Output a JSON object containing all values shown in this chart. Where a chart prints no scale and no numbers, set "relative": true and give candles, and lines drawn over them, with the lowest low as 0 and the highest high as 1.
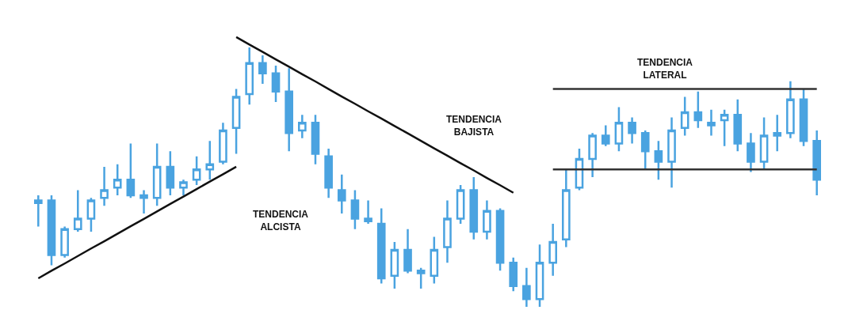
{
  "chart_data": {
    "type": "candlestick",
    "relative": true,
    "tick_labels": false,
    "color": "#4aa3e0",
    "categories": [
      null,
      null,
      null,
      null,
      null,
      null,
      null,
      null,
      null,
      null,
      null,
      null,
      null,
      null,
      null,
      null,
      null,
      null,
      null,
      null,
      null,
      null,
      null,
      null,
      null,
      null,
      null,
      null,
      null,
      null,
      null,
      null,
      null,
      null,
      null,
      null,
      null,
      null,
      null,
      null,
      null,
      null,
      null,
      null,
      null,
      null,
      null,
      null,
      null,
      null,
      null,
      null,
      null,
      null,
      null,
      null,
      null,
      null,
      null,
      null
    ],
    "ohlc": [
      [
        0.4,
        0.43,
        0.31,
        0.41
      ],
      [
        0.41,
        0.43,
        0.16,
        0.2
      ],
      [
        0.2,
        0.31,
        0.19,
        0.3
      ],
      [
        0.3,
        0.45,
        0.29,
        0.34
      ],
      [
        0.34,
        0.42,
        0.29,
        0.41
      ],
      [
        0.42,
        0.54,
        0.39,
        0.45
      ],
      [
        0.46,
        0.55,
        0.43,
        0.49
      ],
      [
        0.49,
        0.63,
        0.42,
        0.43
      ],
      [
        0.43,
        0.45,
        0.36,
        0.42
      ],
      [
        0.42,
        0.63,
        0.39,
        0.54
      ],
      [
        0.54,
        0.6,
        0.43,
        0.46
      ],
      [
        0.46,
        0.49,
        0.43,
        0.48
      ],
      [
        0.49,
        0.58,
        0.47,
        0.53
      ],
      [
        0.53,
        0.64,
        0.49,
        0.55
      ],
      [
        0.56,
        0.71,
        0.55,
        0.68
      ],
      [
        0.69,
        0.84,
        0.59,
        0.81
      ],
      [
        0.82,
        1.0,
        0.78,
        0.94
      ],
      [
        0.94,
        0.97,
        0.86,
        0.9
      ],
      [
        0.9,
        0.93,
        0.79,
        0.83
      ],
      [
        0.83,
        0.92,
        0.6,
        0.67
      ],
      [
        0.68,
        0.74,
        0.65,
        0.71
      ],
      [
        0.71,
        0.74,
        0.55,
        0.59
      ],
      [
        0.58,
        0.61,
        0.42,
        0.46
      ],
      [
        0.45,
        0.51,
        0.36,
        0.41
      ],
      [
        0.41,
        0.45,
        0.3,
        0.34
      ],
      [
        0.34,
        0.41,
        0.32,
        0.33
      ],
      [
        0.32,
        0.38,
        0.09,
        0.11
      ],
      [
        0.12,
        0.25,
        0.07,
        0.22
      ],
      [
        0.22,
        0.3,
        0.13,
        0.14
      ],
      [
        0.14,
        0.15,
        0.07,
        0.13
      ],
      [
        0.12,
        0.27,
        0.09,
        0.22
      ],
      [
        0.23,
        0.41,
        0.17,
        0.34
      ],
      [
        0.34,
        0.47,
        0.32,
        0.45
      ],
      [
        0.45,
        0.5,
        0.26,
        0.29
      ],
      [
        0.29,
        0.41,
        0.26,
        0.37
      ],
      [
        0.37,
        0.38,
        0.14,
        0.17
      ],
      [
        0.17,
        0.19,
        0.06,
        0.08
      ],
      [
        0.08,
        0.15,
        0.0,
        0.03
      ],
      [
        0.03,
        0.24,
        0.0,
        0.17
      ],
      [
        0.17,
        0.32,
        0.12,
        0.25
      ],
      [
        0.26,
        0.53,
        0.23,
        0.45
      ],
      [
        0.46,
        0.61,
        0.45,
        0.57
      ],
      [
        0.57,
        0.67,
        0.5,
        0.66
      ],
      [
        0.66,
        0.7,
        0.62,
        0.63
      ],
      [
        0.63,
        0.77,
        0.6,
        0.71
      ],
      [
        0.71,
        0.73,
        0.63,
        0.67
      ],
      [
        0.67,
        0.68,
        0.53,
        0.6
      ],
      [
        0.6,
        0.64,
        0.49,
        0.56
      ],
      [
        0.56,
        0.73,
        0.46,
        0.68
      ],
      [
        0.69,
        0.81,
        0.66,
        0.75
      ],
      [
        0.75,
        0.83,
        0.69,
        0.72
      ],
      [
        0.71,
        0.76,
        0.66,
        0.7
      ],
      [
        0.72,
        0.76,
        0.62,
        0.74
      ],
      [
        0.74,
        0.8,
        0.6,
        0.63
      ],
      [
        0.63,
        0.67,
        0.52,
        0.56
      ],
      [
        0.56,
        0.73,
        0.53,
        0.66
      ],
      [
        0.66,
        0.74,
        0.6,
        0.67
      ],
      [
        0.67,
        0.87,
        0.65,
        0.8
      ],
      [
        0.8,
        0.84,
        0.62,
        0.64
      ],
      [
        0.64,
        0.68,
        0.43,
        0.49
      ]
    ],
    "series": [
      {
        "type": "line",
        "color": "#111111",
        "values": [
          0.11,
          0.139,
          0.167,
          0.196,
          0.225,
          0.253,
          0.282,
          0.311,
          0.339,
          0.368,
          0.397,
          0.425,
          0.454,
          0.483,
          0.511,
          0.54,
          null,
          null,
          null,
          null,
          null,
          null,
          null,
          null,
          null,
          null,
          null,
          null,
          null,
          null,
          null,
          null,
          null,
          null,
          null,
          null,
          null,
          null,
          null,
          null,
          null,
          null,
          null,
          null,
          null,
          null,
          null,
          null,
          null,
          null,
          null,
          null,
          null,
          null,
          null,
          null,
          null,
          null,
          null,
          null
        ]
      },
      {
        "type": "line",
        "color": "#111111",
        "values": [
          null,
          null,
          null,
          null,
          null,
          null,
          null,
          null,
          null,
          null,
          null,
          null,
          null,
          null,
          null,
          1.04,
          1.011,
          0.983,
          0.954,
          0.926,
          0.897,
          0.869,
          0.84,
          0.811,
          0.783,
          0.754,
          0.726,
          0.697,
          0.669,
          0.64,
          0.611,
          0.583,
          0.554,
          0.526,
          0.497,
          0.469,
          0.44,
          null,
          null,
          null,
          null,
          null,
          null,
          null,
          null,
          null,
          null,
          null,
          null,
          null,
          null,
          null,
          null,
          null,
          null,
          null,
          null,
          null,
          null,
          null
        ]
      },
      {
        "type": "line",
        "color": "#333333",
        "values": [
          null,
          null,
          null,
          null,
          null,
          null,
          null,
          null,
          null,
          null,
          null,
          null,
          null,
          null,
          null,
          null,
          null,
          null,
          null,
          null,
          null,
          null,
          null,
          null,
          null,
          null,
          null,
          null,
          null,
          null,
          null,
          null,
          null,
          null,
          null,
          null,
          null,
          null,
          null,
          0.84,
          0.84,
          0.84,
          0.84,
          0.84,
          0.84,
          0.84,
          0.84,
          0.84,
          0.84,
          0.84,
          0.84,
          0.84,
          0.84,
          0.84,
          0.84,
          0.84,
          0.84,
          0.84,
          0.84,
          0.84
        ]
      },
      {
        "type": "line",
        "color": "#333333",
        "values": [
          null,
          null,
          null,
          null,
          null,
          null,
          null,
          null,
          null,
          null,
          null,
          null,
          null,
          null,
          null,
          null,
          null,
          null,
          null,
          null,
          null,
          null,
          null,
          null,
          null,
          null,
          null,
          null,
          null,
          null,
          null,
          null,
          null,
          null,
          null,
          null,
          null,
          null,
          null,
          0.53,
          0.53,
          0.53,
          0.53,
          0.53,
          0.53,
          0.53,
          0.53,
          0.53,
          0.53,
          0.53,
          0.53,
          0.53,
          0.53,
          0.53,
          0.53,
          0.53,
          0.53,
          0.53,
          0.53,
          0.53
        ]
      }
    ],
    "annotations": [
      "TENDENCIA\nALCISTA",
      "TENDENCIA\nBAJISTA",
      "TENDENCIA\nLATERAL"
    ]
  }
}
